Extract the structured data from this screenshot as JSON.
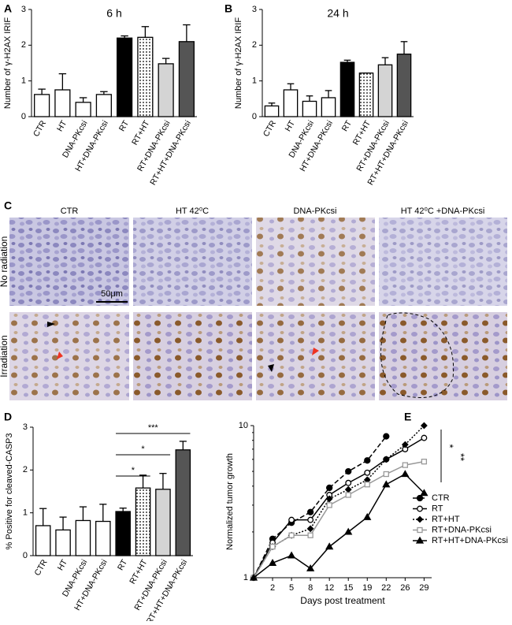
{
  "chart_data": [
    {
      "type": "bar",
      "panel": "A",
      "title": "6 h",
      "y_label": "Number of γ-H2AX IRIF",
      "categories": [
        "CTR",
        "HT",
        "DNA-PKcsi",
        "HT+DNA-PKcsi",
        "RT",
        "RT+HT",
        "RT+DNA-PKcsi",
        "RT+HT+DNA-PKcsi"
      ],
      "values": [
        0.62,
        0.75,
        0.4,
        0.62,
        2.2,
        2.22,
        1.48,
        2.1
      ],
      "errors": [
        0.15,
        0.45,
        0.13,
        0.08,
        0.06,
        0.3,
        0.15,
        0.47
      ],
      "fills": [
        "white",
        "white",
        "white",
        "white",
        "black",
        "dots",
        "#d4d4d4",
        "#555555"
      ],
      "ylim": [
        0,
        3
      ],
      "yticks": [
        0,
        1,
        2,
        3
      ]
    },
    {
      "type": "bar",
      "panel": "B",
      "title": "24 h",
      "y_label": "Number of γ-H2AX IRIF",
      "categories": [
        "CTR",
        "HT",
        "DNA-PKcsi",
        "HT+DNA-PKcsi",
        "RT",
        "RT+HT",
        "RT+DNA-PKcsi",
        "RT+HT+DNA-PKcsi"
      ],
      "values": [
        0.3,
        0.75,
        0.43,
        0.53,
        1.52,
        1.22,
        1.45,
        1.75
      ],
      "errors": [
        0.08,
        0.17,
        0.15,
        0.2,
        0.06,
        0,
        0.2,
        0.35
      ],
      "fills": [
        "white",
        "white",
        "white",
        "white",
        "black",
        "dots",
        "#d4d4d4",
        "#555555"
      ],
      "ylim": [
        0,
        3
      ],
      "yticks": [
        0,
        1,
        2,
        3
      ]
    },
    {
      "type": "bar",
      "panel": "D",
      "y_label": "% Positive for cleaved-CASP3",
      "categories": [
        "CTR",
        "HT",
        "DNA-PKcsi",
        "HT+DNA-PKcsi",
        "RT",
        "RT+HT",
        "RT+DNA-PKcsi",
        "RT+HT+DNA-PKcsi"
      ],
      "values": [
        0.7,
        0.6,
        0.82,
        0.8,
        1.03,
        1.58,
        1.55,
        2.47
      ],
      "errors": [
        0.4,
        0.3,
        0.32,
        0.4,
        0.08,
        0.3,
        0.37,
        0.2
      ],
      "fills": [
        "white",
        "white",
        "white",
        "white",
        "black",
        "dots",
        "#d4d4d4",
        "#555555"
      ],
      "ylim": [
        0,
        3
      ],
      "yticks": [
        0,
        1,
        2,
        3
      ],
      "annotations": [
        {
          "text": "*",
          "between": [
            "RT",
            "RT+HT"
          ]
        },
        {
          "text": "*",
          "between": [
            "RT",
            "RT+DNA-PKcsi"
          ]
        },
        {
          "text": "***",
          "between": [
            "RT",
            "RT+HT+DNA-PKcsi"
          ]
        }
      ]
    },
    {
      "type": "line",
      "panel": "E",
      "x_label": "Days post treatment",
      "y_label": "Normalized tumor growth",
      "log_y": true,
      "categories": [
        null,
        "2",
        "5",
        "8",
        "12",
        "15",
        "19",
        "22",
        "26",
        "29"
      ],
      "ylim": [
        1,
        10
      ],
      "yticks": [
        1,
        10
      ],
      "series": [
        {
          "name": "CTR",
          "color": "#000000",
          "dash": "dashed",
          "marker": "circle",
          "values": [
            1,
            1.8,
            2.3,
            2.7,
            3.9,
            5,
            5.9,
            8.5,
            null,
            null
          ]
        },
        {
          "name": "RT",
          "color": "#000000",
          "dash": "solid",
          "marker": "circle-open",
          "values": [
            1,
            1.7,
            2.4,
            2.4,
            3.5,
            4.2,
            4.9,
            6,
            7,
            8.3
          ]
        },
        {
          "name": "RT+HT",
          "color": "#000000",
          "dash": "dotted",
          "marker": "diamond",
          "values": [
            1,
            1.6,
            1.9,
            2.1,
            3.3,
            3.8,
            4.4,
            6,
            7.5,
            10
          ]
        },
        {
          "name": "RT+DNA-PKcsi",
          "color": "#999999",
          "dash": "solid",
          "marker": "square-open",
          "values": [
            1,
            1.6,
            1.9,
            1.9,
            3,
            3.5,
            4.1,
            4.8,
            5.5,
            5.8
          ]
        },
        {
          "name": "RT+HT+DNA-PKcsi",
          "color": "#000000",
          "dash": "solid",
          "marker": "triangle",
          "values": [
            1,
            1.25,
            1.4,
            1.15,
            1.6,
            2,
            2.5,
            4.1,
            4.8,
            3.6
          ]
        }
      ],
      "annotations": [
        {
          "text": "*"
        },
        {
          "text": "**"
        }
      ]
    }
  ],
  "panel_c": {
    "panel": "C",
    "columns": [
      "CTR",
      "HT 42⁰C",
      "DNA-PKcsi",
      "HT 42⁰C +DNA-PKcsi"
    ],
    "rows": [
      "No radiation",
      "Irradiation"
    ],
    "scale_bar": "50μm"
  }
}
